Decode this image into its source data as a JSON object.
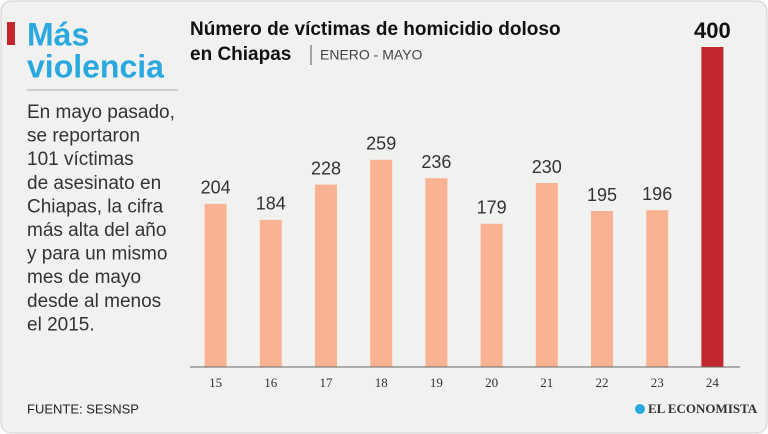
{
  "sidebar": {
    "title_lines": [
      "Más",
      "violencia"
    ],
    "body_lines": [
      "En mayo pasado,",
      "se reportaron",
      "101 víctimas",
      "de asesinato en",
      "Chiapas, la cifra",
      "más alta del año",
      "y para un mismo",
      "mes de mayo",
      "desde al menos",
      "el 2015."
    ],
    "source": "FUENTE: SESNSP"
  },
  "logo": "EL ECONOMISTA",
  "chart_data": {
    "type": "bar",
    "title": [
      "Número de víctimas de homicidio doloso",
      "en Chiapas"
    ],
    "subtitle": "ENERO - MAYO",
    "categories": [
      "15",
      "16",
      "17",
      "18",
      "19",
      "20",
      "21",
      "22",
      "23",
      "24"
    ],
    "values": [
      204,
      184,
      228,
      259,
      236,
      179,
      230,
      195,
      196,
      400
    ],
    "colors": [
      "#f9b393",
      "#f9b393",
      "#f9b393",
      "#f9b393",
      "#f9b393",
      "#f9b393",
      "#f9b393",
      "#f9b393",
      "#f9b393",
      "#c1272d"
    ],
    "ylim": [
      0,
      400
    ]
  }
}
